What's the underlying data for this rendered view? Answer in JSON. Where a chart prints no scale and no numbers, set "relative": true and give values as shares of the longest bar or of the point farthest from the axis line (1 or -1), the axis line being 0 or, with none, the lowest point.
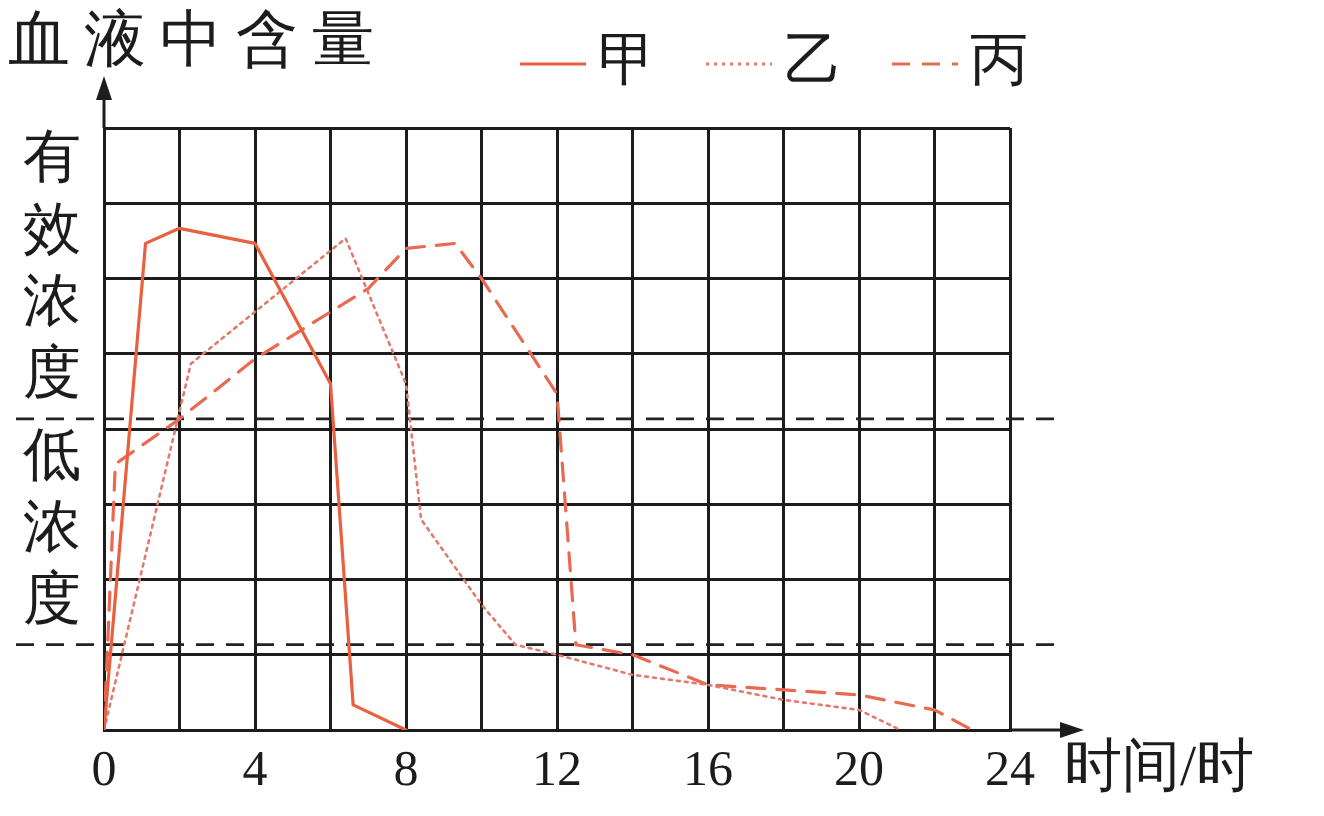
{
  "chart_data": {
    "type": "line",
    "ylabel": "血液中含量",
    "xlabel": "时间/时",
    "relative": true,
    "grid": true,
    "legend": "top",
    "marker": "none",
    "xlim": [
      0,
      24
    ],
    "xticks": [
      0,
      {
        "value": 2,
        "label": null
      },
      4,
      {
        "value": 6,
        "label": null
      },
      8,
      {
        "value": 10,
        "label": null
      },
      12,
      {
        "value": 14,
        "label": null
      },
      16,
      {
        "value": 18,
        "label": null
      },
      20,
      {
        "value": 22,
        "label": null
      },
      24
    ],
    "series": [
      {
        "name": "甲",
        "color": "#e8603f",
        "line_style": "solid",
        "x": [
          0,
          1.1,
          2,
          4,
          6,
          6.6,
          8
        ],
        "values": [
          0,
          0.97,
          1,
          0.97,
          0.69,
          0.05,
          0
        ]
      },
      {
        "name": "乙",
        "color": "#e07c6e",
        "line_style": "dotted",
        "x": [
          0,
          2.3,
          6.4,
          8,
          8.4,
          10,
          10.9,
          12,
          14,
          16,
          18,
          20,
          21.1
        ],
        "values": [
          0,
          0.73,
          0.98,
          0.69,
          0.42,
          0.25,
          0.17,
          0.15,
          0.11,
          0.09,
          0.06,
          0.04,
          0
        ]
      },
      {
        "name": "丙",
        "color": "#e86a52",
        "line_style": "dashed",
        "x": [
          0,
          0.3,
          2,
          4,
          7,
          8,
          9.3,
          10,
          12,
          12.5,
          14,
          16,
          20,
          22,
          23
        ],
        "values": [
          0,
          0.53,
          0.62,
          0.74,
          0.88,
          0.96,
          0.97,
          0.9,
          0.67,
          0.17,
          0.15,
          0.09,
          0.07,
          0.04,
          0
        ]
      }
    ],
    "ref_lines": [
      {
        "axis": "y",
        "value": 0.62,
        "label": "有效浓度",
        "color": "#222222",
        "line_style": "dashed"
      },
      {
        "axis": "y",
        "value": 0.17,
        "label": "低浓度",
        "color": "#222222",
        "line_style": "dashed"
      }
    ]
  }
}
